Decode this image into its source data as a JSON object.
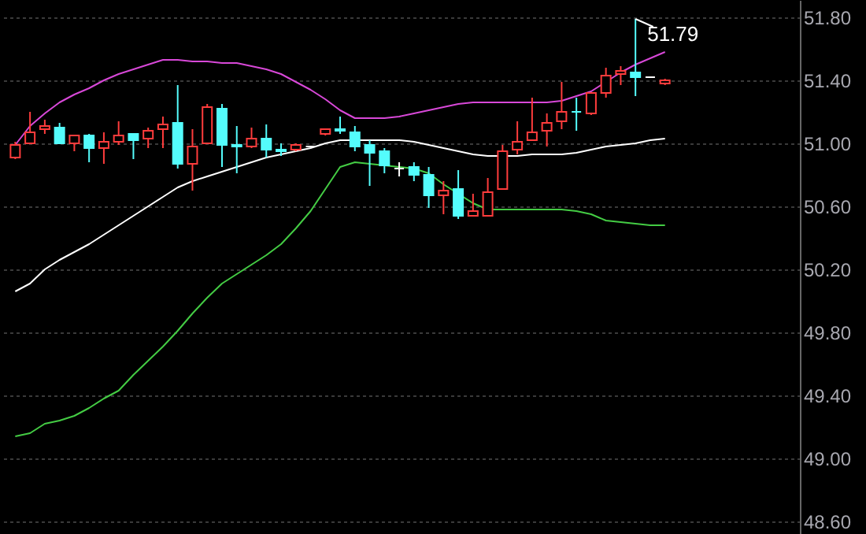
{
  "chart_data": {
    "type": "candlestick",
    "categories": [
      null,
      null,
      null,
      null,
      null,
      null,
      null,
      null,
      null,
      null,
      null,
      null,
      null,
      null,
      null,
      null,
      null,
      null,
      null,
      null,
      null,
      null,
      null,
      null,
      null,
      null,
      null,
      null,
      null,
      null,
      null,
      null,
      null,
      null,
      null,
      null,
      null,
      null,
      null,
      null,
      null,
      null,
      null,
      null,
      null
    ],
    "ohlc": [
      [
        50.91,
        51.01,
        50.9,
        50.99
      ],
      [
        51.0,
        51.2,
        51.0,
        51.07
      ],
      [
        51.09,
        51.15,
        51.06,
        51.11
      ],
      [
        51.1,
        51.13,
        51.0,
        51.0
      ],
      [
        51.0,
        51.05,
        50.95,
        51.05
      ],
      [
        51.05,
        51.06,
        50.88,
        50.97
      ],
      [
        50.97,
        51.07,
        50.87,
        51.01
      ],
      [
        51.01,
        51.14,
        50.99,
        51.05
      ],
      [
        51.06,
        51.06,
        50.9,
        51.02
      ],
      [
        51.03,
        51.1,
        50.97,
        51.08
      ],
      [
        51.09,
        51.17,
        50.97,
        51.12
      ],
      [
        51.13,
        51.37,
        50.84,
        50.87
      ],
      [
        50.87,
        51.09,
        50.7,
        50.98
      ],
      [
        51.0,
        51.25,
        51.0,
        51.23
      ],
      [
        51.22,
        51.25,
        50.85,
        50.99
      ],
      [
        50.99,
        51.11,
        50.81,
        50.98
      ],
      [
        50.98,
        51.1,
        50.97,
        51.03
      ],
      [
        51.03,
        51.12,
        50.91,
        50.96
      ],
      [
        50.96,
        51.0,
        50.92,
        50.95
      ],
      [
        50.96,
        51.0,
        50.95,
        50.99
      ],
      [
        50.98,
        50.98,
        50.98,
        50.98
      ],
      [
        51.06,
        51.09,
        51.05,
        51.09
      ],
      [
        51.09,
        51.17,
        51.06,
        51.08
      ],
      [
        51.07,
        51.11,
        50.95,
        50.98
      ],
      [
        50.99,
        51.02,
        50.73,
        50.94
      ],
      [
        50.95,
        50.97,
        50.81,
        50.86
      ],
      [
        50.84,
        50.88,
        50.79,
        50.84
      ],
      [
        50.85,
        50.88,
        50.76,
        50.8
      ],
      [
        50.8,
        50.85,
        50.59,
        50.67
      ],
      [
        50.67,
        50.76,
        50.55,
        50.7
      ],
      [
        50.71,
        50.83,
        50.52,
        50.54
      ],
      [
        50.54,
        50.68,
        50.54,
        50.57
      ],
      [
        50.54,
        50.78,
        50.54,
        50.69
      ],
      [
        50.71,
        50.99,
        50.71,
        50.95
      ],
      [
        50.96,
        51.14,
        50.93,
        51.01
      ],
      [
        51.02,
        51.29,
        51.02,
        51.07
      ],
      [
        51.08,
        51.19,
        50.98,
        51.13
      ],
      [
        51.14,
        51.39,
        51.09,
        51.2
      ],
      [
        51.2,
        51.29,
        51.08,
        51.2
      ],
      [
        51.19,
        51.32,
        51.18,
        51.32
      ],
      [
        51.32,
        51.48,
        51.29,
        51.43
      ],
      [
        51.44,
        51.49,
        51.37,
        51.46
      ],
      [
        51.45,
        51.79,
        51.3,
        51.42
      ],
      [
        51.42,
        51.42,
        51.42,
        51.42
      ],
      [
        51.38,
        51.41,
        51.37,
        51.4
      ]
    ],
    "colors": [
      "#ff3c3c",
      "#ff3c3c",
      "#ff3c3c",
      "#54fcfc",
      "#ff3c3c",
      "#54fcfc",
      "#ff3c3c",
      "#ff3c3c",
      "#54fcfc",
      "#ff3c3c",
      "#ff3c3c",
      "#54fcfc",
      "#ff3c3c",
      "#ff3c3c",
      "#54fcfc",
      "#54fcfc",
      "#ff3c3c",
      "#54fcfc",
      "#54fcfc",
      "#ff3c3c",
      "#ffffff",
      "#ff3c3c",
      "#54fcfc",
      "#54fcfc",
      "#54fcfc",
      "#54fcfc",
      "#ffffff",
      "#54fcfc",
      "#54fcfc",
      "#ff3c3c",
      "#54fcfc",
      "#ff3c3c",
      "#ff3c3c",
      "#ff3c3c",
      "#ff3c3c",
      "#ff3c3c",
      "#ff3c3c",
      "#ff3c3c",
      "#54fcfc",
      "#ff3c3c",
      "#ff3c3c",
      "#ff3c3c",
      "#54fcfc",
      "#ffffff",
      "#ff3c3c"
    ],
    "series": [
      {
        "type": "line",
        "color": "#d848d8",
        "values": [
          50.99,
          51.11,
          51.19,
          51.26,
          51.31,
          51.35,
          51.4,
          51.44,
          51.47,
          51.5,
          51.53,
          51.53,
          51.52,
          51.52,
          51.51,
          51.51,
          51.49,
          51.47,
          51.44,
          51.39,
          51.34,
          51.28,
          51.21,
          51.16,
          51.16,
          51.16,
          51.17,
          51.19,
          51.21,
          51.23,
          51.25,
          51.26,
          51.26,
          51.26,
          51.26,
          51.26,
          51.26,
          51.27,
          51.3,
          51.33,
          51.39,
          51.45,
          51.5,
          51.54,
          51.58
        ]
      },
      {
        "type": "line",
        "color": "#ffffff",
        "values": [
          50.06,
          50.11,
          50.2,
          50.26,
          50.31,
          50.36,
          50.42,
          50.48,
          50.54,
          50.6,
          50.66,
          50.72,
          50.76,
          50.79,
          50.82,
          50.85,
          50.88,
          50.91,
          50.93,
          50.95,
          50.97,
          51.0,
          51.02,
          51.02,
          51.02,
          51.02,
          51.02,
          51.01,
          50.99,
          50.97,
          50.95,
          50.93,
          50.92,
          50.92,
          50.92,
          50.93,
          50.93,
          50.93,
          50.94,
          50.96,
          50.98,
          50.99,
          51.0,
          51.02,
          51.03
        ]
      },
      {
        "type": "line",
        "color": "#44cc44",
        "values": [
          49.14,
          49.16,
          49.22,
          49.24,
          49.27,
          49.32,
          49.38,
          49.43,
          49.53,
          49.62,
          49.71,
          49.81,
          49.92,
          50.02,
          50.11,
          50.17,
          50.23,
          50.29,
          50.36,
          50.46,
          50.57,
          50.71,
          50.85,
          50.88,
          50.87,
          50.86,
          50.85,
          50.84,
          50.81,
          50.74,
          50.68,
          50.62,
          50.58,
          50.58,
          50.58,
          50.58,
          50.58,
          50.58,
          50.57,
          50.55,
          50.51,
          50.5,
          50.49,
          50.48,
          50.48
        ]
      }
    ],
    "ylim": [
      48.52,
      51.91
    ],
    "yticks": [
      {
        "value": 51.8,
        "label": "51.80"
      },
      {
        "value": 51.4,
        "label": "51.40"
      },
      {
        "value": 51.0,
        "label": "51.00"
      },
      {
        "value": 50.6,
        "label": "50.60"
      },
      {
        "value": 50.2,
        "label": "50.20"
      },
      {
        "value": 49.8,
        "label": "49.80"
      },
      {
        "value": 49.4,
        "label": "49.40"
      },
      {
        "value": 49.0,
        "label": "49.00"
      },
      {
        "value": 48.6,
        "label": "48.60"
      }
    ],
    "grid": "y",
    "tick_labels": "y",
    "annotations": [
      "51.79"
    ]
  }
}
